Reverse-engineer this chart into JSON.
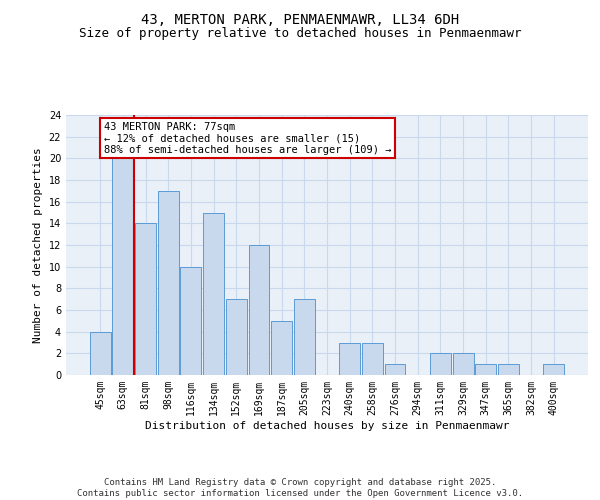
{
  "title1": "43, MERTON PARK, PENMAENMAWR, LL34 6DH",
  "title2": "Size of property relative to detached houses in Penmaenmawr",
  "xlabel": "Distribution of detached houses by size in Penmaenmawr",
  "ylabel": "Number of detached properties",
  "categories": [
    "45sqm",
    "63sqm",
    "81sqm",
    "98sqm",
    "116sqm",
    "134sqm",
    "152sqm",
    "169sqm",
    "187sqm",
    "205sqm",
    "223sqm",
    "240sqm",
    "258sqm",
    "276sqm",
    "294sqm",
    "311sqm",
    "329sqm",
    "347sqm",
    "365sqm",
    "382sqm",
    "400sqm"
  ],
  "values": [
    4,
    20,
    14,
    17,
    10,
    15,
    7,
    12,
    5,
    7,
    0,
    3,
    3,
    1,
    0,
    2,
    2,
    1,
    1,
    0,
    1
  ],
  "bar_color": "#c8d9ed",
  "bar_edge_color": "#5b9bd5",
  "grid_color": "#c8d9ed",
  "bg_color": "#eaf0f8",
  "annotation_text": "43 MERTON PARK: 77sqm\n← 12% of detached houses are smaller (15)\n88% of semi-detached houses are larger (109) →",
  "annotation_box_color": "#ffffff",
  "annotation_box_edge_color": "#cc0000",
  "red_line_x": 1.5,
  "ylim": [
    0,
    24
  ],
  "yticks": [
    0,
    2,
    4,
    6,
    8,
    10,
    12,
    14,
    16,
    18,
    20,
    22,
    24
  ],
  "footer": "Contains HM Land Registry data © Crown copyright and database right 2025.\nContains public sector information licensed under the Open Government Licence v3.0.",
  "title_fontsize": 10,
  "subtitle_fontsize": 9,
  "ylabel_fontsize": 8,
  "xlabel_fontsize": 8,
  "tick_fontsize": 7,
  "annotation_fontsize": 7.5,
  "footer_fontsize": 6.5
}
